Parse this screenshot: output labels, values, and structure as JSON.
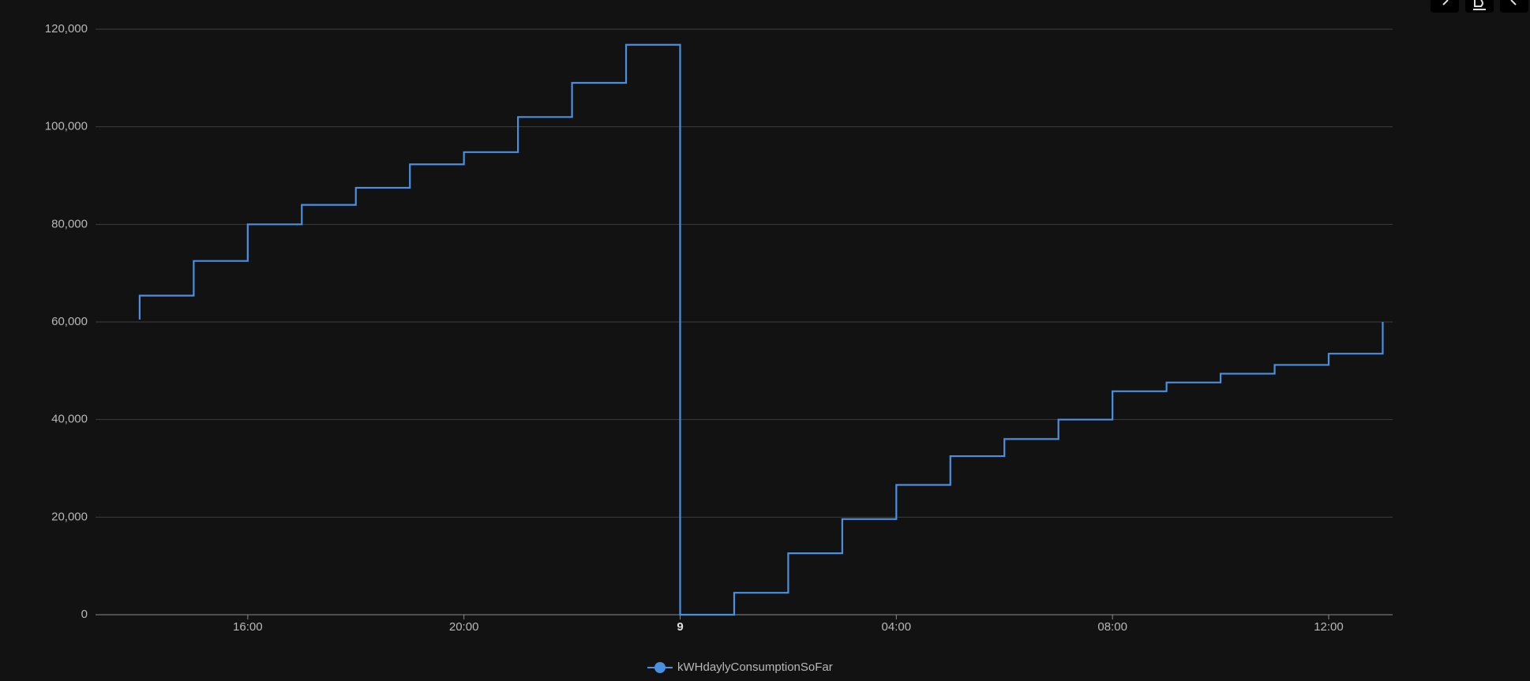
{
  "chart_data": {
    "type": "line",
    "step": "start",
    "x": [
      "14:00",
      "15:00",
      "16:00",
      "17:00",
      "18:00",
      "19:00",
      "20:00",
      "21:00",
      "22:00",
      "23:00",
      "00:00",
      "01:00",
      "02:00",
      "03:00",
      "04:00",
      "05:00",
      "06:00",
      "07:00",
      "08:00",
      "09:00",
      "10:00",
      "11:00",
      "12:00",
      "13:00",
      "13:00"
    ],
    "series": [
      {
        "name": "kWHdaylyConsumptionSoFar",
        "color": "#4a90e2",
        "values": [
          60500,
          65400,
          72500,
          80000,
          84000,
          87500,
          92300,
          94800,
          102000,
          109000,
          116800,
          0,
          4500,
          12600,
          19600,
          26600,
          32500,
          36000,
          40000,
          45800,
          47600,
          49400,
          51200,
          53500,
          60000
        ]
      }
    ],
    "xlim": [
      "13:11",
      "13:11"
    ],
    "xticks": [
      "16:00",
      "20:00",
      {
        "value": "00:00",
        "label": "9"
      },
      "04:00",
      "08:00",
      "12:00"
    ],
    "ylim": [
      0,
      120000
    ],
    "yticks": [
      0,
      {
        "value": 20000,
        "label": "20,000"
      },
      {
        "value": 40000,
        "label": "40,000"
      },
      {
        "value": 60000,
        "label": "60,000"
      },
      {
        "value": 80000,
        "label": "80,000"
      },
      {
        "value": 100000,
        "label": "100,000"
      },
      {
        "value": 120000,
        "label": "120,000"
      }
    ],
    "grid": true,
    "legend": "bottom"
  }
}
